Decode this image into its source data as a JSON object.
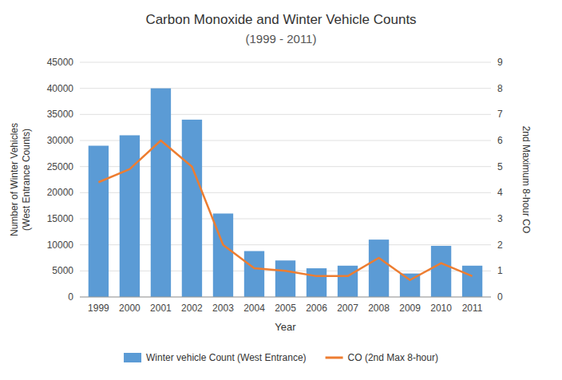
{
  "chart_data": {
    "type": "bar",
    "title": "Carbon Monoxide and Winter Vehicle Counts",
    "subtitle": "(1999 - 2011)",
    "categories": [
      "1999",
      "2000",
      "2001",
      "2002",
      "2003",
      "2004",
      "2005",
      "2006",
      "2007",
      "2008",
      "2009",
      "2010",
      "2011"
    ],
    "series": [
      {
        "name": "Winter vehicle Count (West Entrance)",
        "type": "bar",
        "color": "#5B9BD5",
        "values": [
          29000,
          31000,
          40000,
          34000,
          16000,
          8800,
          7000,
          5500,
          6000,
          11000,
          4500,
          9800,
          6000
        ]
      },
      {
        "name": "CO (2nd Max 8-hour)",
        "type": "line",
        "color": "#ED7D31",
        "axis": "y2",
        "values": [
          4.4,
          4.9,
          6.0,
          5.0,
          2.0,
          1.1,
          1.0,
          0.8,
          0.8,
          1.5,
          0.65,
          1.3,
          0.8
        ]
      }
    ],
    "x_label": "Year",
    "y_label": "Number of Winter Vehicles\n(West Entrance Counts)",
    "y2_label": "2nd Maximum 8-hour CO",
    "ylim": [
      0,
      45000
    ],
    "yticks": [
      0,
      5000,
      10000,
      15000,
      20000,
      25000,
      30000,
      35000,
      40000,
      45000
    ],
    "y2lim": [
      0,
      9
    ],
    "y2ticks": [
      0,
      1,
      2,
      3,
      4,
      5,
      6,
      7,
      8,
      9
    ],
    "grid": true,
    "legend": "bottom"
  }
}
